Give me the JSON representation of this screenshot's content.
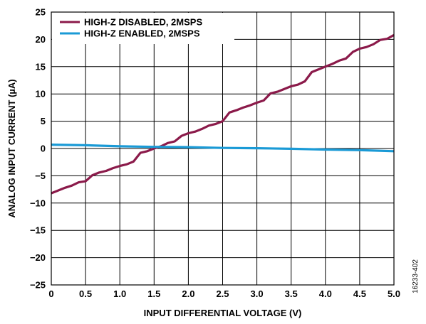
{
  "chart_data": {
    "type": "line",
    "title": "",
    "xlabel": "INPUT DIFFERENTIAL VOLTAGE (V)",
    "ylabel": "ANALOG INPUT CURRENT (µA)",
    "xlim": [
      0,
      5.0
    ],
    "ylim": [
      -25,
      25
    ],
    "x_ticks": [
      0,
      0.5,
      1.0,
      1.5,
      2.0,
      2.5,
      3.0,
      3.5,
      4.0,
      4.5,
      5.0
    ],
    "x_tick_labels": [
      "0",
      "0.5",
      "1.0",
      "1.5",
      "2.0",
      "2.5",
      "3.0",
      "3.5",
      "4.0",
      "4.5",
      "5.0"
    ],
    "y_ticks": [
      25,
      20,
      15,
      10,
      5,
      0,
      -5,
      -10,
      -15,
      -20,
      -25
    ],
    "y_tick_labels": [
      "25",
      "20",
      "15",
      "10",
      "5",
      "0",
      "−5",
      "−10",
      "−15",
      "−20",
      "−25"
    ],
    "grid": true,
    "legend_position": "top-left",
    "series": [
      {
        "name": "HIGH-Z DISABLED, 2MSPS",
        "color": "#8b1a4a",
        "x": [
          0,
          0.1,
          0.2,
          0.3,
          0.4,
          0.5,
          0.6,
          0.7,
          0.8,
          0.9,
          1.0,
          1.1,
          1.2,
          1.3,
          1.4,
          1.5,
          1.6,
          1.7,
          1.8,
          1.9,
          2.0,
          2.1,
          2.2,
          2.3,
          2.4,
          2.5,
          2.6,
          2.7,
          2.8,
          2.9,
          3.0,
          3.1,
          3.2,
          3.3,
          3.4,
          3.5,
          3.6,
          3.7,
          3.8,
          3.9,
          4.0,
          4.1,
          4.2,
          4.3,
          4.4,
          4.5,
          4.6,
          4.7,
          4.8,
          4.9,
          5.0
        ],
        "y": [
          -8.2,
          -7.7,
          -7.2,
          -6.8,
          -6.2,
          -6.0,
          -4.9,
          -4.4,
          -4.1,
          -3.6,
          -3.2,
          -2.9,
          -2.4,
          -0.8,
          -0.5,
          0.0,
          0.4,
          1.0,
          1.3,
          2.3,
          2.8,
          3.1,
          3.6,
          4.2,
          4.5,
          5.0,
          6.6,
          7.0,
          7.5,
          7.9,
          8.4,
          8.8,
          10.1,
          10.4,
          10.9,
          11.4,
          11.7,
          12.3,
          14.0,
          14.5,
          15.0,
          15.5,
          16.1,
          16.5,
          17.7,
          18.3,
          18.6,
          19.1,
          19.9,
          20.1,
          20.8
        ]
      },
      {
        "name": "HIGH-Z ENABLED, 2MSPS",
        "color": "#1a9ad6",
        "x": [
          0,
          0.5,
          1.0,
          1.5,
          2.0,
          2.5,
          3.0,
          3.5,
          4.0,
          4.5,
          5.0
        ],
        "y": [
          0.7,
          0.6,
          0.4,
          0.3,
          0.25,
          0.1,
          0.05,
          -0.05,
          -0.2,
          -0.3,
          -0.5
        ]
      }
    ]
  },
  "figure_id": "16233-402"
}
